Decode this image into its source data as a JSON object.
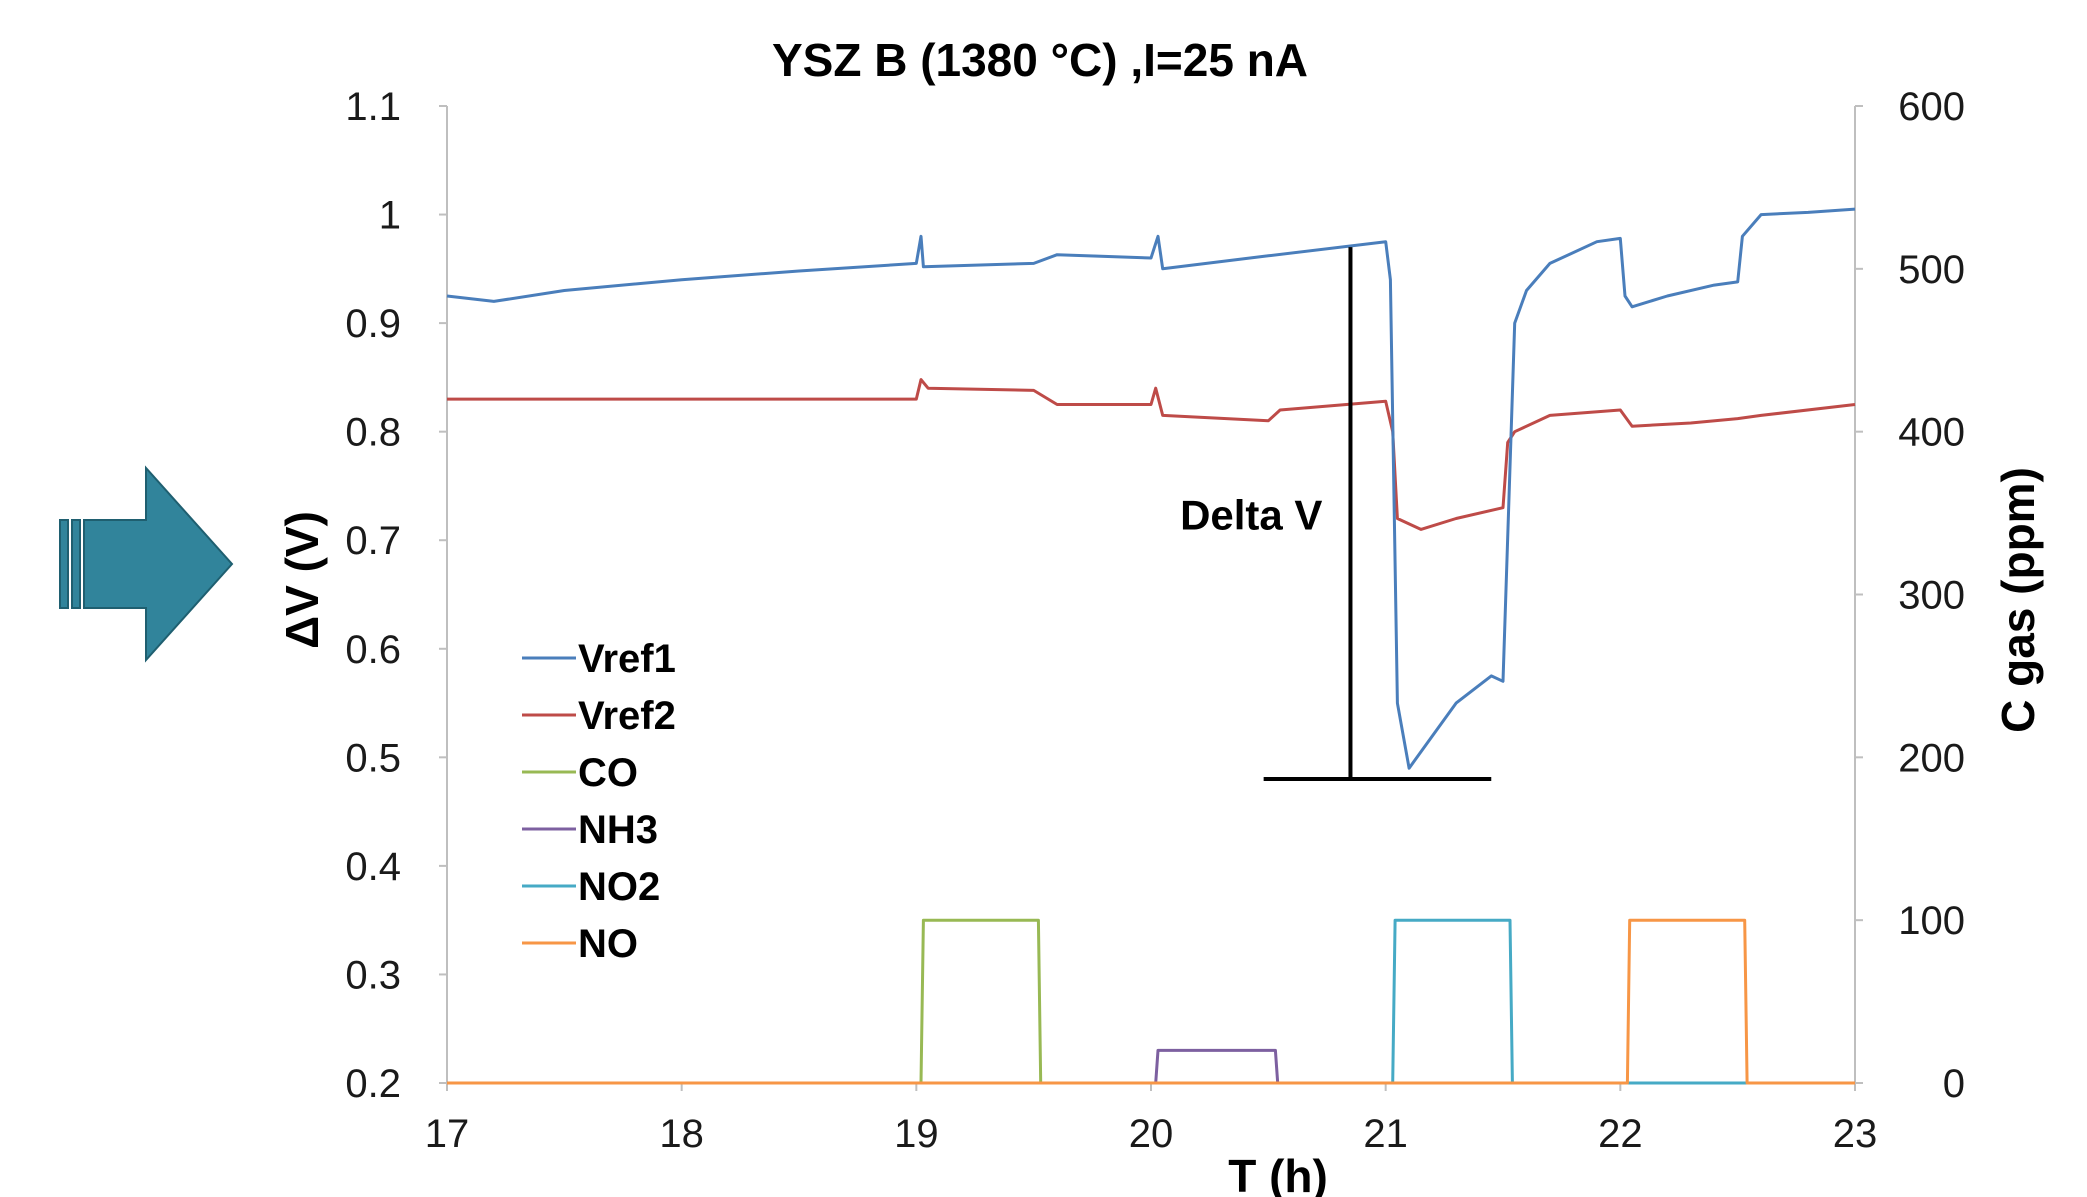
{
  "colors": {
    "Vref1": "#4a7ebb",
    "Vref2": "#be4b48",
    "CO": "#98b954",
    "NH3": "#7d60a0",
    "NO2": "#46aac5",
    "NO": "#f79646",
    "arrow_fill": "#31849b",
    "axis": "#bfbfbf"
  },
  "decorative_arrow_icon": "right-arrow-icon",
  "chart_data": {
    "type": "line",
    "title": "YSZ B (1380 °C) ,I=25 nA",
    "xlabel": "T (h)",
    "ylabel": "ΔV (V)",
    "y2label": "C gas (ppm)",
    "xlim": [
      17,
      23
    ],
    "ylim": [
      0.2,
      1.1
    ],
    "y2lim": [
      0,
      600
    ],
    "xticks": [
      "17",
      "18",
      "19",
      "20",
      "21",
      "22",
      "23"
    ],
    "yticks": [
      "0.2",
      "0.3",
      "0.4",
      "0.5",
      "0.6",
      "0.7",
      "0.8",
      "0.9",
      "1",
      "1.1"
    ],
    "y2ticks": [
      "0",
      "100",
      "200",
      "300",
      "400",
      "500",
      "600"
    ],
    "grid": false,
    "legend_position": "left-lower",
    "series": [
      {
        "name": "Vref1",
        "axis": "left",
        "x": [
          17.0,
          17.2,
          17.5,
          18.0,
          18.5,
          19.0,
          19.02,
          19.03,
          19.5,
          19.6,
          20.0,
          20.03,
          20.05,
          20.5,
          21.0,
          21.02,
          21.05,
          21.1,
          21.2,
          21.3,
          21.45,
          21.5,
          21.55,
          21.6,
          21.7,
          21.9,
          22.0,
          22.02,
          22.05,
          22.2,
          22.4,
          22.5,
          22.52,
          22.6,
          22.8,
          23.0
        ],
        "y": [
          0.925,
          0.92,
          0.93,
          0.94,
          0.948,
          0.955,
          0.98,
          0.952,
          0.955,
          0.963,
          0.96,
          0.98,
          0.95,
          0.962,
          0.975,
          0.94,
          0.55,
          0.49,
          0.52,
          0.55,
          0.575,
          0.57,
          0.9,
          0.93,
          0.955,
          0.975,
          0.978,
          0.925,
          0.915,
          0.925,
          0.935,
          0.938,
          0.98,
          1.0,
          1.002,
          1.005
        ]
      },
      {
        "name": "Vref2",
        "axis": "left",
        "x": [
          17.0,
          18.0,
          19.0,
          19.02,
          19.05,
          19.5,
          19.6,
          20.0,
          20.02,
          20.05,
          20.5,
          20.55,
          21.0,
          21.03,
          21.05,
          21.15,
          21.3,
          21.5,
          21.52,
          21.55,
          21.7,
          22.0,
          22.05,
          22.3,
          22.5,
          22.6,
          23.0
        ],
        "y": [
          0.83,
          0.83,
          0.83,
          0.848,
          0.84,
          0.838,
          0.825,
          0.825,
          0.84,
          0.815,
          0.81,
          0.82,
          0.828,
          0.8,
          0.72,
          0.71,
          0.72,
          0.73,
          0.79,
          0.8,
          0.815,
          0.82,
          0.805,
          0.808,
          0.812,
          0.815,
          0.825
        ]
      },
      {
        "name": "CO",
        "axis": "right",
        "x": [
          17.0,
          19.02,
          19.03,
          19.52,
          19.53,
          23.0
        ],
        "y": [
          0,
          0,
          100,
          100,
          0,
          0
        ]
      },
      {
        "name": "NH3",
        "axis": "right",
        "x": [
          17.0,
          20.02,
          20.03,
          20.53,
          20.54,
          23.0
        ],
        "y": [
          0,
          0,
          20,
          20,
          0,
          0
        ]
      },
      {
        "name": "NO2",
        "axis": "right",
        "x": [
          17.0,
          21.03,
          21.04,
          21.53,
          21.54,
          23.0
        ],
        "y": [
          0,
          0,
          100,
          100,
          0,
          0
        ]
      },
      {
        "name": "NO",
        "axis": "right",
        "x": [
          17.0,
          22.03,
          22.04,
          22.53,
          22.54,
          23.0
        ],
        "y": [
          0,
          0,
          100,
          100,
          0,
          0
        ]
      }
    ],
    "annotation": {
      "label": "Delta V",
      "x": 20.85,
      "y_top": 0.97,
      "y_bottom": 0.48,
      "x_base_from": 20.48,
      "x_base_to": 21.45
    }
  }
}
